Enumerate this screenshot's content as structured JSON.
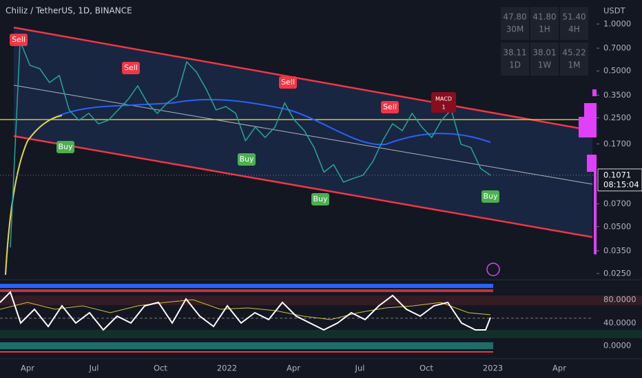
{
  "header": {
    "title": "Chiliz / TetherUS, 1D, BINANCE",
    "currency": "USDT"
  },
  "timeframes": [
    {
      "value": "47.80",
      "label": "30M"
    },
    {
      "value": "41.80",
      "label": "1H"
    },
    {
      "value": "51.40",
      "label": "4H"
    },
    {
      "value": "38.11",
      "label": "1D"
    },
    {
      "value": "38.01",
      "label": "1W"
    },
    {
      "value": "45.22",
      "label": "1M"
    }
  ],
  "chart_data": {
    "type": "line",
    "log_scale": true,
    "values": [
      0.0368,
      0.776,
      0.544,
      0.517,
      0.421,
      0.467,
      0.281,
      0.241,
      0.267,
      0.229,
      0.241,
      0.281,
      0.327,
      0.401,
      0.311,
      0.267,
      0.311,
      0.344,
      0.572,
      0.491,
      0.381,
      0.281,
      0.295,
      0.267,
      0.178,
      0.218,
      0.187,
      0.218,
      0.311,
      0.241,
      0.207,
      0.161,
      0.112,
      0.125,
      0.0966,
      0.102,
      0.107,
      0.131,
      0.178,
      0.229,
      0.207,
      0.267,
      0.218,
      0.187,
      0.241,
      0.281,
      0.169,
      0.161,
      0.118,
      0.107
    ],
    "color": "#26a69a",
    "ylim": [
      0.025,
      1.0
    ],
    "yticks": [
      {
        "value": 1.0,
        "label": "1.0000"
      },
      {
        "value": 0.7,
        "label": "0.7000"
      },
      {
        "value": 0.5,
        "label": "0.5000"
      },
      {
        "value": 0.35,
        "label": "0.3500"
      },
      {
        "value": 0.25,
        "label": "0.2500"
      },
      {
        "value": 0.17,
        "label": "0.1700"
      },
      {
        "value": 0.07,
        "label": "0.0700"
      },
      {
        "value": 0.05,
        "label": "0.0500"
      },
      {
        "value": 0.035,
        "label": "0.0350"
      },
      {
        "value": 0.025,
        "label": "0.0250"
      }
    ],
    "current_price": {
      "value": 0.1071,
      "label": "0.1071"
    },
    "countdown": "08:15:04",
    "time_labels": [
      "Apr",
      "Jul",
      "Oct",
      "2022",
      "Apr",
      "Jul",
      "Oct",
      "2023",
      "Apr"
    ]
  },
  "signals": [
    "Sell",
    "Sell",
    "Sell",
    "Sell",
    "Buy",
    "Buy",
    "Buy",
    "Buy"
  ],
  "macd": {
    "name": "MACD",
    "count": "1"
  },
  "indicator_axis": [
    "80.0000",
    "40.0000",
    "0.0000"
  ]
}
